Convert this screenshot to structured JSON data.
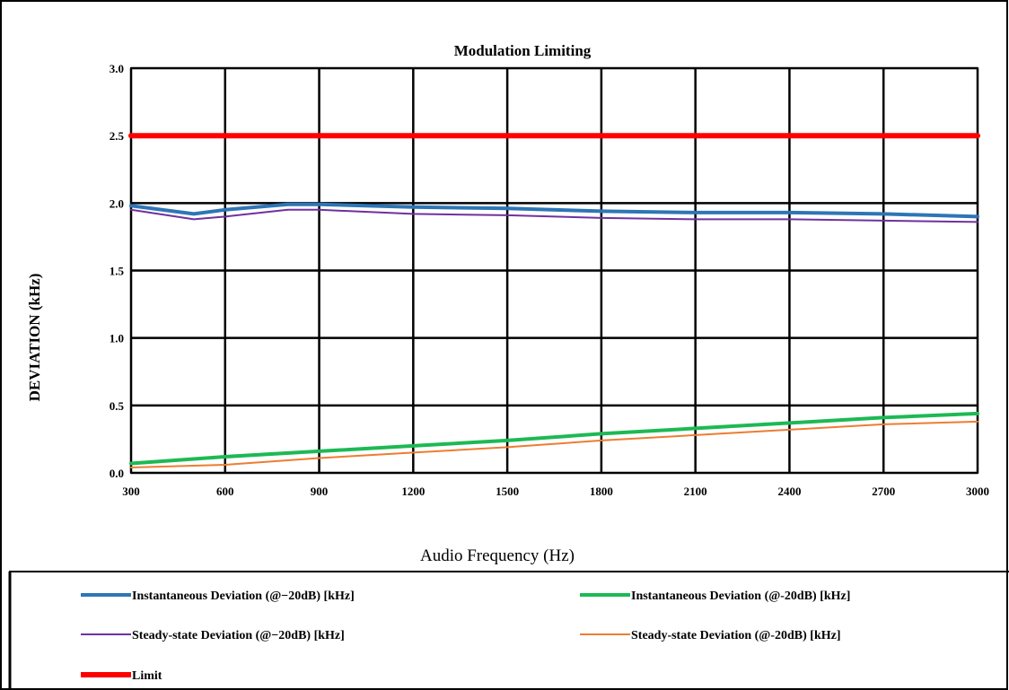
{
  "chart_data": {
    "type": "line",
    "title": "Modulation Limiting",
    "xlabel": "Audio Frequency (Hz)",
    "ylabel": "DEVIATION (kHz)",
    "xlim": [
      300,
      3000
    ],
    "ylim": [
      0,
      3
    ],
    "x_ticks": [
      "300",
      "600",
      "900",
      "1200",
      "1500",
      "1800",
      "2100",
      "2400",
      "2700",
      "3000"
    ],
    "y_ticks": [
      "0.0",
      "0.5",
      "1.0",
      "1.5",
      "2.0",
      "2.5",
      "3.0"
    ],
    "grid": true,
    "legend_position": "bottom",
    "series": [
      {
        "name": "Instantaneous Deviation (@−20dB) [kHz]",
        "color": "#2e75b6",
        "width": 4,
        "x": [
          300,
          500,
          600,
          800,
          900,
          1200,
          1500,
          1800,
          2100,
          2400,
          2700,
          3000
        ],
        "y": [
          1.98,
          1.92,
          1.95,
          1.99,
          1.99,
          1.97,
          1.96,
          1.94,
          1.93,
          1.93,
          1.92,
          1.9
        ]
      },
      {
        "name": "Instantaneous Deviation (@-20dB) [kHz]",
        "color": "#1db954",
        "width": 4,
        "x": [
          300,
          600,
          900,
          1200,
          1500,
          1800,
          2100,
          2400,
          2700,
          3000
        ],
        "y": [
          0.07,
          0.12,
          0.16,
          0.2,
          0.24,
          0.29,
          0.33,
          0.37,
          0.41,
          0.44
        ]
      },
      {
        "name": "Steady-state Deviation (@−20dB) [kHz]",
        "color": "#7030a0",
        "width": 2,
        "x": [
          300,
          500,
          600,
          800,
          900,
          1200,
          1500,
          1800,
          2100,
          2400,
          2700,
          3000
        ],
        "y": [
          1.95,
          1.88,
          1.9,
          1.95,
          1.95,
          1.92,
          1.91,
          1.89,
          1.88,
          1.88,
          1.87,
          1.86
        ]
      },
      {
        "name": "Steady-state Deviation (@-20dB) [kHz]",
        "color": "#ed7d31",
        "width": 2,
        "x": [
          300,
          600,
          900,
          1200,
          1500,
          1800,
          2100,
          2400,
          2700,
          3000
        ],
        "y": [
          0.04,
          0.06,
          0.11,
          0.15,
          0.19,
          0.24,
          0.28,
          0.32,
          0.36,
          0.38
        ]
      },
      {
        "name": "Limit",
        "color": "#ff0000",
        "width": 6,
        "x": [
          300,
          3000
        ],
        "y": [
          2.5,
          2.5
        ]
      }
    ]
  }
}
